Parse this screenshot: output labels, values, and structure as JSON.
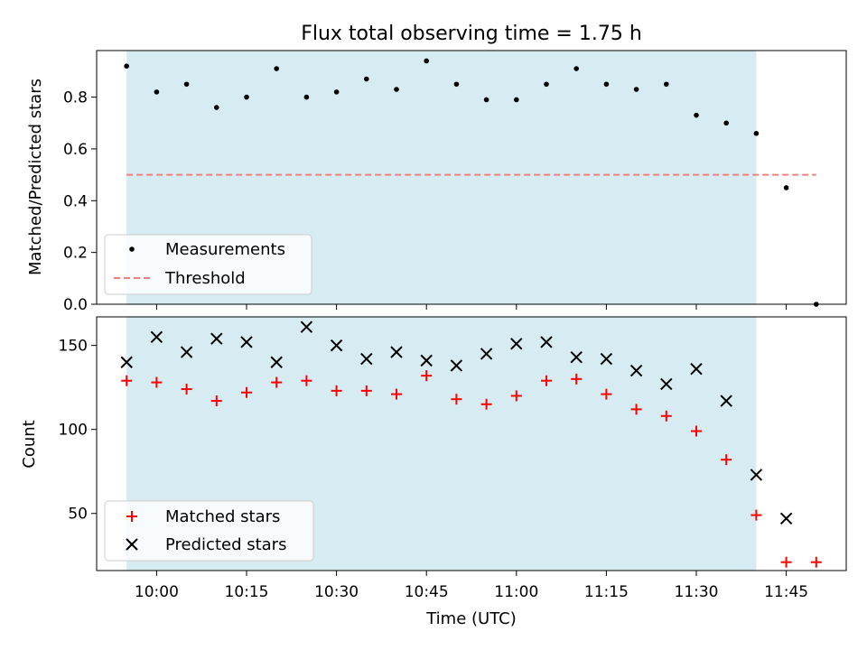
{
  "chart_data": [
    {
      "type": "scatter",
      "title": "Flux total observing time = 1.75 h",
      "xlabel": "",
      "ylabel": "Matched/Predicted stars",
      "ylim": [
        0,
        0.98
      ],
      "yticks": [
        "0.0",
        "0.2",
        "0.4",
        "0.6",
        "0.8"
      ],
      "ytick_values": [
        0.0,
        0.2,
        0.4,
        0.6,
        0.8
      ],
      "shaded_span": {
        "start": "09:55",
        "end": "11:40",
        "color": "#add8e6"
      },
      "threshold": {
        "value": 0.5,
        "from": "09:55",
        "to": "11:50",
        "color": "#f08080"
      },
      "legend": {
        "placement": "lower-left",
        "entries": [
          "Measurements",
          "Threshold"
        ]
      },
      "series": [
        {
          "name": "Measurements",
          "marker": "dot",
          "color": "#000000",
          "x": [
            "09:55",
            "10:00",
            "10:05",
            "10:10",
            "10:15",
            "10:20",
            "10:25",
            "10:30",
            "10:35",
            "10:40",
            "10:45",
            "10:50",
            "10:55",
            "11:00",
            "11:05",
            "11:10",
            "11:15",
            "11:20",
            "11:25",
            "11:30",
            "11:35",
            "11:40",
            "11:45",
            "11:50"
          ],
          "y": [
            0.92,
            0.82,
            0.85,
            0.76,
            0.8,
            0.91,
            0.8,
            0.82,
            0.87,
            0.83,
            0.94,
            0.85,
            0.79,
            0.79,
            0.85,
            0.91,
            0.85,
            0.83,
            0.85,
            0.73,
            0.7,
            0.66,
            0.45,
            0.0
          ]
        }
      ]
    },
    {
      "type": "scatter",
      "title": "",
      "xlabel": "Time (UTC)",
      "ylabel": "Count",
      "ylim": [
        16,
        167
      ],
      "yticks": [
        "50",
        "100",
        "150"
      ],
      "ytick_values": [
        50,
        100,
        150
      ],
      "xticks": [
        "10:00",
        "10:15",
        "10:30",
        "10:45",
        "11:00",
        "11:15",
        "11:30",
        "11:45"
      ],
      "xlim": [
        "09:50",
        "11:55"
      ],
      "shaded_span": {
        "start": "09:55",
        "end": "11:40",
        "color": "#add8e6"
      },
      "legend": {
        "placement": "lower-left",
        "entries": [
          "Matched stars",
          "Predicted stars"
        ]
      },
      "series": [
        {
          "name": "Matched stars",
          "marker": "plus",
          "color": "#ff0000",
          "x": [
            "09:55",
            "10:00",
            "10:05",
            "10:10",
            "10:15",
            "10:20",
            "10:25",
            "10:30",
            "10:35",
            "10:40",
            "10:45",
            "10:50",
            "10:55",
            "11:00",
            "11:05",
            "11:10",
            "11:15",
            "11:20",
            "11:25",
            "11:30",
            "11:35",
            "11:40",
            "11:45",
            "11:50"
          ],
          "y": [
            129,
            128,
            124,
            117,
            122,
            128,
            129,
            123,
            123,
            121,
            132,
            118,
            115,
            120,
            129,
            130,
            121,
            112,
            108,
            99,
            82,
            49,
            21,
            21
          ]
        },
        {
          "name": "Predicted stars",
          "marker": "x",
          "color": "#000000",
          "x": [
            "09:55",
            "10:00",
            "10:05",
            "10:10",
            "10:15",
            "10:20",
            "10:25",
            "10:30",
            "10:35",
            "10:40",
            "10:45",
            "10:50",
            "10:55",
            "11:00",
            "11:05",
            "11:10",
            "11:15",
            "11:20",
            "11:25",
            "11:30",
            "11:35",
            "11:40",
            "11:45"
          ],
          "y": [
            140,
            155,
            146,
            154,
            152,
            140,
            161,
            150,
            142,
            146,
            141,
            138,
            145,
            151,
            152,
            143,
            142,
            135,
            127,
            136,
            117,
            73,
            47
          ]
        }
      ]
    }
  ]
}
